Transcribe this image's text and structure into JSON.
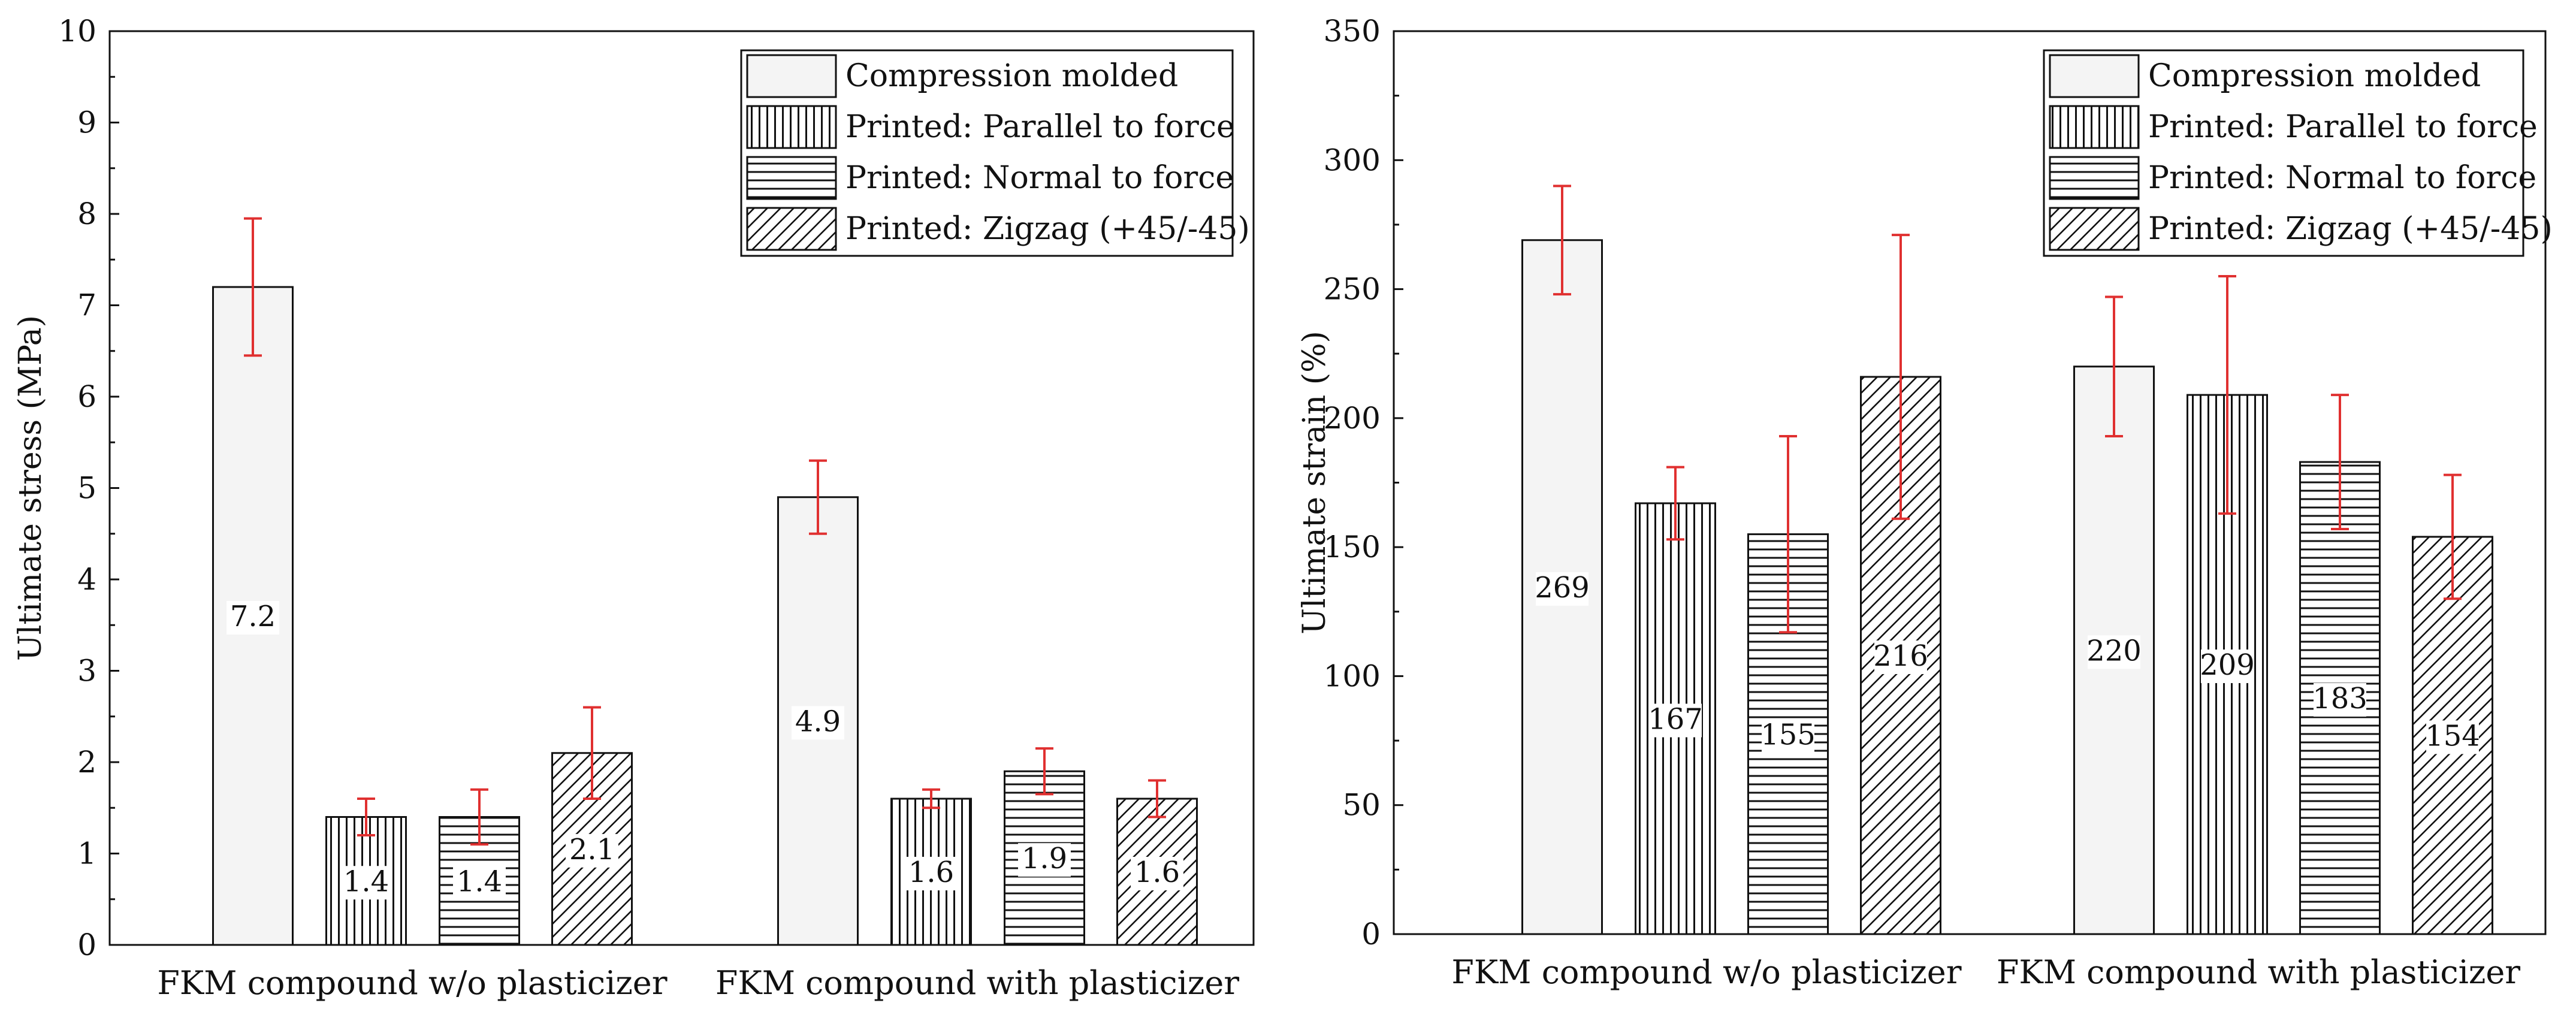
{
  "chart_data": [
    {
      "type": "bar",
      "ylabel": "Ultimate stress (MPa)",
      "xlabel": "",
      "ylim": [
        0,
        10
      ],
      "yticks": [
        0,
        1,
        2,
        3,
        4,
        5,
        6,
        7,
        8,
        9,
        10
      ],
      "categories": [
        "FKM compound w/o plasticizer",
        "FKM compound with plasticizer"
      ],
      "series": [
        {
          "name": "Compression molded",
          "pattern": "plain",
          "values": [
            7.2,
            4.9
          ],
          "errors": [
            0.75,
            0.4
          ],
          "labels": [
            "7.2",
            "4.9"
          ]
        },
        {
          "name": "Printed: Parallel to force",
          "pattern": "vertical",
          "values": [
            1.4,
            1.6
          ],
          "errors": [
            0.2,
            0.1
          ],
          "labels": [
            "1.4",
            "1.6"
          ]
        },
        {
          "name": "Printed: Normal to force",
          "pattern": "horizontal",
          "values": [
            1.4,
            1.9
          ],
          "errors": [
            0.3,
            0.25
          ],
          "labels": [
            "1.4",
            "1.9"
          ]
        },
        {
          "name": "Printed: Zigzag (+45/-45)",
          "pattern": "diagonal",
          "values": [
            2.1,
            1.6
          ],
          "errors": [
            0.5,
            0.2
          ],
          "labels": [
            "2.1",
            "1.6"
          ]
        }
      ],
      "legend_position": "top-right",
      "grid": false,
      "error_bar_color": "#e03030"
    },
    {
      "type": "bar",
      "ylabel": "Ultimate strain (%)",
      "xlabel": "",
      "ylim": [
        0,
        350
      ],
      "yticks": [
        0,
        50,
        100,
        150,
        200,
        250,
        300,
        350
      ],
      "categories": [
        "FKM compound w/o plasticizer",
        "FKM compound with plasticizer"
      ],
      "series": [
        {
          "name": "Compression molded",
          "pattern": "plain",
          "values": [
            269,
            220
          ],
          "errors": [
            21,
            27
          ],
          "labels": [
            "269",
            "220"
          ]
        },
        {
          "name": "Printed: Parallel to force",
          "pattern": "vertical",
          "values": [
            167,
            209
          ],
          "errors": [
            14,
            46
          ],
          "labels": [
            "167",
            "209"
          ]
        },
        {
          "name": "Printed: Normal to force",
          "pattern": "horizontal",
          "values": [
            155,
            183
          ],
          "errors": [
            38,
            26
          ],
          "labels": [
            "155",
            "183"
          ]
        },
        {
          "name": "Printed: Zigzag (+45/-45)",
          "pattern": "diagonal",
          "values": [
            216,
            154
          ],
          "errors": [
            55,
            24
          ],
          "labels": [
            "216",
            "154"
          ]
        }
      ],
      "legend_position": "top-right",
      "grid": false,
      "error_bar_color": "#e03030"
    }
  ]
}
